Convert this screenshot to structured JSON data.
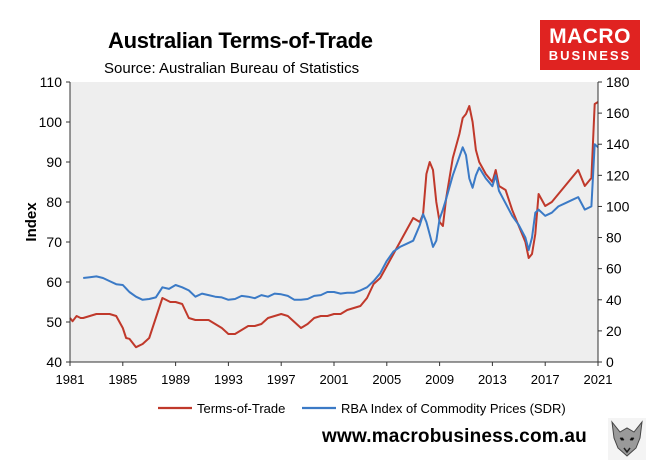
{
  "header": {
    "title": "Australian Terms-of-Trade",
    "subtitle": "Source: Australian Bureau of Statistics"
  },
  "logo": {
    "line1": "MACRO",
    "line2": "BUSINESS",
    "color": "#e02321"
  },
  "footer": {
    "url": "www.macrobusiness.com.au"
  },
  "chart_data": {
    "type": "line",
    "title": "Australian Terms-of-Trade",
    "subtitle": "Source: Australian Bureau of Statistics",
    "ylabel": "Index",
    "y2label": "",
    "xlim": [
      1981,
      2021
    ],
    "ylim": [
      40,
      110
    ],
    "y2lim": [
      0,
      180
    ],
    "x_ticks": [
      "1981",
      "1985",
      "1989",
      "1993",
      "1997",
      "2001",
      "2005",
      "2009",
      "2013",
      "2017",
      "2021"
    ],
    "y_ticks": [
      "40",
      "50",
      "60",
      "70",
      "80",
      "90",
      "100",
      "110"
    ],
    "y2_ticks": [
      "0",
      "20",
      "40",
      "60",
      "80",
      "100",
      "120",
      "140",
      "160",
      "180"
    ],
    "grid": false,
    "plot_background": "#eeeeee",
    "legend_position": "bottom",
    "series": [
      {
        "name": "Terms-of-Trade",
        "axis": "left",
        "color": "#c0392b",
        "x": [
          1981.0,
          1981.2,
          1981.5,
          1981.8,
          1982.0,
          1982.5,
          1983.0,
          1983.5,
          1984.0,
          1984.5,
          1985.0,
          1985.25,
          1985.5,
          1986.0,
          1986.5,
          1987.0,
          1987.5,
          1988.0,
          1988.3,
          1988.6,
          1989.0,
          1989.5,
          1990.0,
          1990.5,
          1991.0,
          1991.5,
          1992.0,
          1992.5,
          1993.0,
          1993.5,
          1994.0,
          1994.5,
          1995.0,
          1995.5,
          1996.0,
          1996.5,
          1997.0,
          1997.5,
          1998.0,
          1998.5,
          1999.0,
          1999.5,
          2000.0,
          2000.5,
          2001.0,
          2001.5,
          2002.0,
          2002.5,
          2003.0,
          2003.5,
          2004.0,
          2004.5,
          2005.0,
          2005.5,
          2006.0,
          2006.5,
          2007.0,
          2007.5,
          2007.75,
          2008.0,
          2008.25,
          2008.5,
          2008.75,
          2009.0,
          2009.25,
          2009.5,
          2010.0,
          2010.5,
          2010.75,
          2011.0,
          2011.25,
          2011.5,
          2011.75,
          2012.0,
          2012.5,
          2013.0,
          2013.25,
          2013.5,
          2014.0,
          2014.5,
          2015.0,
          2015.5,
          2015.75,
          2016.0,
          2016.25,
          2016.5,
          2017.0,
          2017.5,
          2018.0,
          2018.5,
          2019.0,
          2019.5,
          2020.0,
          2020.25,
          2020.5,
          2020.75,
          2021.0
        ],
        "values": [
          51,
          50.2,
          51.5,
          51,
          51,
          51.5,
          52,
          52,
          52,
          51.5,
          48.5,
          46,
          45.8,
          43.7,
          44.5,
          46,
          51,
          56,
          55.5,
          55,
          55,
          54.5,
          51,
          50.5,
          50.5,
          50.5,
          49.5,
          48.5,
          47,
          47,
          48,
          49,
          49,
          49.5,
          51,
          51.5,
          52,
          51.5,
          50,
          48.5,
          49.5,
          51,
          51.5,
          51.5,
          52,
          52,
          53,
          53.5,
          54,
          56,
          59.5,
          61,
          64,
          67,
          70,
          73,
          76,
          75,
          77,
          87,
          90,
          88,
          80,
          75,
          74,
          81,
          91,
          97,
          101,
          102,
          104,
          100,
          93,
          90,
          87,
          85,
          88,
          84,
          83,
          78,
          74,
          70,
          66,
          67,
          72,
          82,
          79,
          80,
          82,
          84,
          86,
          88,
          84,
          85,
          86,
          104.5,
          105
        ]
      },
      {
        "name": "RBA Index of Commodity Prices (SDR)",
        "axis": "right",
        "color": "#3b7ac6",
        "x": [
          1982.0,
          1982.5,
          1983.0,
          1983.5,
          1984.0,
          1984.5,
          1985.0,
          1985.5,
          1986.0,
          1986.5,
          1987.0,
          1987.5,
          1988.0,
          1988.5,
          1989.0,
          1989.5,
          1990.0,
          1990.5,
          1991.0,
          1991.5,
          1992.0,
          1992.5,
          1993.0,
          1993.5,
          1994.0,
          1994.5,
          1995.0,
          1995.5,
          1996.0,
          1996.5,
          1997.0,
          1997.5,
          1998.0,
          1998.5,
          1999.0,
          1999.5,
          2000.0,
          2000.5,
          2001.0,
          2001.5,
          2002.0,
          2002.5,
          2003.0,
          2003.5,
          2004.0,
          2004.5,
          2005.0,
          2005.5,
          2006.0,
          2006.5,
          2007.0,
          2007.5,
          2007.75,
          2008.0,
          2008.25,
          2008.5,
          2008.75,
          2009.0,
          2009.25,
          2009.5,
          2010.0,
          2010.5,
          2010.75,
          2011.0,
          2011.25,
          2011.5,
          2011.75,
          2012.0,
          2012.5,
          2013.0,
          2013.25,
          2013.5,
          2014.0,
          2014.5,
          2015.0,
          2015.5,
          2015.75,
          2016.0,
          2016.25,
          2016.5,
          2017.0,
          2017.5,
          2018.0,
          2018.5,
          2019.0,
          2019.5,
          2020.0,
          2020.5,
          2020.75,
          2021.0
        ],
        "values": [
          54,
          54.5,
          55,
          54,
          52,
          50,
          49.5,
          45,
          42,
          40,
          40.5,
          41.5,
          48,
          47,
          49.5,
          48,
          46,
          42,
          44,
          43,
          42,
          41.5,
          40,
          40.5,
          42.5,
          42,
          41,
          43,
          42,
          44,
          43.5,
          42.5,
          40,
          40,
          40.5,
          42.5,
          43,
          45,
          45,
          44,
          44.5,
          44.5,
          46,
          48,
          52,
          57,
          65,
          71,
          74,
          76,
          78,
          88,
          95,
          90,
          82,
          74,
          78,
          92,
          98,
          105,
          120,
          132,
          138,
          133,
          118,
          112,
          120,
          125,
          118,
          113,
          120,
          110,
          102,
          94,
          88,
          80,
          72,
          80,
          96,
          98,
          94,
          96,
          100,
          102,
          104,
          106,
          98,
          100,
          140,
          138
        ]
      }
    ]
  }
}
